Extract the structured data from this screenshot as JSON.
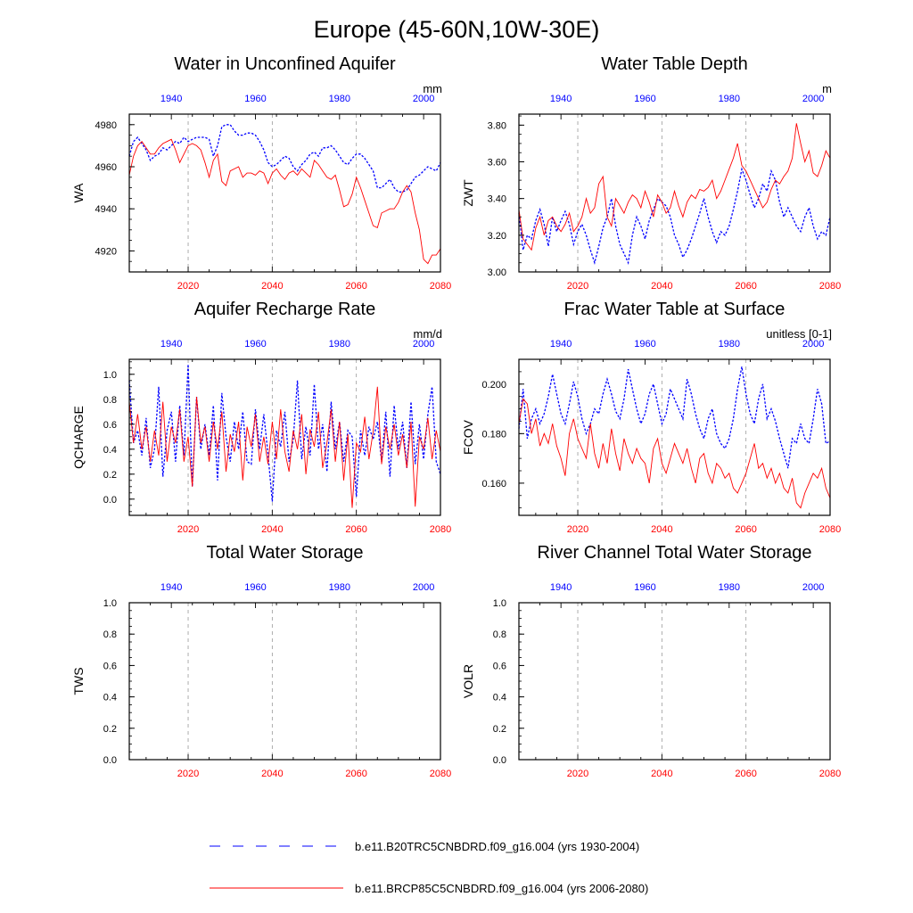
{
  "page_title": "Europe (45-60N,10W-30E)",
  "legend": [
    {
      "label": "b.e11.B20TRC5CNBDRD.f09_g16.004 (yrs 1930-2004)",
      "color": "#0000ff",
      "style": "dashed"
    },
    {
      "label": "b.e11.BRCP85C5CNBDRD.f09_g16.004 (yrs 2006-2080)",
      "color": "#ff0000",
      "style": "solid"
    }
  ],
  "colors": {
    "historical": "#0000ff",
    "future": "#ff0000",
    "grid": "#999999"
  },
  "chart_data": [
    {
      "type": "line",
      "title": "Water in Unconfined Aquifer",
      "ylabel": "WA",
      "units": "mm",
      "ylim": [
        4910,
        4985
      ],
      "yticks": [
        4920,
        4940,
        4960,
        4980
      ],
      "yticklabels": [
        "4920",
        "4940",
        "4960",
        "4980"
      ],
      "bottom_xlim": [
        2006,
        2080
      ],
      "bottom_xticks": [
        "2020",
        "2040",
        "2060",
        "2080"
      ],
      "top_xlim": [
        1930,
        2004
      ],
      "top_xticks": [
        "1940",
        "1960",
        "1980",
        "2000"
      ],
      "series": [
        {
          "name": "b.e11.B20TRC5CNBDRD.f09_g16.004 (yrs 1930-2004)",
          "color": "#0000ff",
          "style": "dashed",
          "x_start": 1930,
          "values": [
            4965,
            4972,
            4974,
            4971,
            4968,
            4963,
            4965,
            4966,
            4969,
            4968,
            4970,
            4972,
            4971,
            4974,
            4972,
            4973,
            4974,
            4974,
            4974,
            4973,
            4965,
            4970,
            4979,
            4980,
            4980,
            4977,
            4975,
            4975,
            4976,
            4976,
            4975,
            4972,
            4968,
            4962,
            4960,
            4961,
            4963,
            4965,
            4964,
            4960,
            4958,
            4961,
            4963,
            4966,
            4967,
            4965,
            4969,
            4969,
            4970,
            4968,
            4965,
            4962,
            4961,
            4964,
            4966,
            4966,
            4964,
            4961,
            4958,
            4950,
            4950,
            4952,
            4954,
            4950,
            4948,
            4948,
            4949,
            4952,
            4955,
            4956,
            4958,
            4960,
            4959,
            4958,
            4962
          ]
        },
        {
          "name": "b.e11.BRCP85C5CNBDRD.f09_g16.004 (yrs 2006-2080)",
          "color": "#ff0000",
          "style": "solid",
          "x_start": 2006,
          "values": [
            4956,
            4965,
            4970,
            4972,
            4969,
            4966,
            4966,
            4969,
            4971,
            4972,
            4973,
            4968,
            4962,
            4966,
            4970,
            4971,
            4970,
            4968,
            4962,
            4955,
            4963,
            4966,
            4953,
            4951,
            4958,
            4959,
            4960,
            4955,
            4957,
            4957,
            4956,
            4958,
            4957,
            4952,
            4957,
            4959,
            4956,
            4954,
            4957,
            4958,
            4956,
            4959,
            4957,
            4955,
            4963,
            4961,
            4958,
            4955,
            4954,
            4956,
            4949,
            4941,
            4942,
            4947,
            4955,
            4950,
            4944,
            4938,
            4932,
            4931,
            4938,
            4939,
            4940,
            4940,
            4943,
            4948,
            4951,
            4948,
            4938,
            4930,
            4916,
            4914,
            4918,
            4918,
            4921
          ]
        }
      ]
    },
    {
      "type": "line",
      "title": "Water Table Depth",
      "ylabel": "ZWT",
      "units": "m",
      "ylim": [
        3.0,
        3.86
      ],
      "yticks": [
        3.0,
        3.2,
        3.4,
        3.6,
        3.8
      ],
      "yticklabels": [
        "3.00",
        "3.20",
        "3.40",
        "3.60",
        "3.80"
      ],
      "bottom_xlim": [
        2006,
        2080
      ],
      "bottom_xticks": [
        "2020",
        "2040",
        "2060",
        "2080"
      ],
      "top_xlim": [
        1930,
        2004
      ],
      "top_xticks": [
        "1940",
        "1960",
        "1980",
        "2000"
      ],
      "series": [
        {
          "name": "b.e11.B20TRC5CNBDRD.f09_g16.004 (yrs 1930-2004)",
          "color": "#0000ff",
          "style": "dashed",
          "x_start": 1930,
          "values": [
            3.32,
            3.12,
            3.2,
            3.18,
            3.28,
            3.34,
            3.26,
            3.14,
            3.3,
            3.22,
            3.28,
            3.33,
            3.26,
            3.15,
            3.22,
            3.26,
            3.2,
            3.12,
            3.05,
            3.14,
            3.24,
            3.3,
            3.4,
            3.25,
            3.15,
            3.1,
            3.05,
            3.2,
            3.3,
            3.25,
            3.18,
            3.28,
            3.34,
            3.4,
            3.38,
            3.36,
            3.3,
            3.2,
            3.15,
            3.08,
            3.12,
            3.18,
            3.25,
            3.32,
            3.4,
            3.3,
            3.22,
            3.16,
            3.22,
            3.2,
            3.25,
            3.34,
            3.44,
            3.56,
            3.5,
            3.42,
            3.35,
            3.4,
            3.48,
            3.44,
            3.55,
            3.5,
            3.38,
            3.3,
            3.35,
            3.3,
            3.25,
            3.22,
            3.3,
            3.35,
            3.25,
            3.18,
            3.22,
            3.2,
            3.3
          ]
        },
        {
          "name": "b.e11.BRCP85C5CNBDRD.f09_g16.004 (yrs 2006-2080)",
          "color": "#ff0000",
          "style": "solid",
          "x_start": 2006,
          "values": [
            3.34,
            3.18,
            3.15,
            3.12,
            3.24,
            3.3,
            3.2,
            3.28,
            3.3,
            3.25,
            3.22,
            3.26,
            3.32,
            3.22,
            3.25,
            3.3,
            3.4,
            3.32,
            3.35,
            3.48,
            3.52,
            3.3,
            3.25,
            3.4,
            3.36,
            3.32,
            3.38,
            3.42,
            3.4,
            3.35,
            3.44,
            3.38,
            3.3,
            3.42,
            3.38,
            3.32,
            3.35,
            3.44,
            3.36,
            3.3,
            3.38,
            3.42,
            3.4,
            3.45,
            3.44,
            3.46,
            3.5,
            3.4,
            3.44,
            3.5,
            3.56,
            3.62,
            3.7,
            3.58,
            3.55,
            3.5,
            3.45,
            3.4,
            3.35,
            3.38,
            3.45,
            3.5,
            3.48,
            3.52,
            3.55,
            3.62,
            3.81,
            3.7,
            3.6,
            3.66,
            3.54,
            3.52,
            3.58,
            3.66,
            3.62
          ]
        }
      ]
    },
    {
      "type": "line",
      "title": "Aquifer Recharge Rate",
      "ylabel": "QCHARGE",
      "units": "mm/d",
      "ylim": [
        -0.13,
        1.12
      ],
      "yticks": [
        0.0,
        0.2,
        0.4,
        0.6,
        0.8,
        1.0
      ],
      "yticklabels": [
        "0.0",
        "0.2",
        "0.4",
        "0.6",
        "0.8",
        "1.0"
      ],
      "bottom_xlim": [
        2006,
        2080
      ],
      "bottom_xticks": [
        "2020",
        "2040",
        "2060",
        "2080"
      ],
      "top_xlim": [
        1930,
        2004
      ],
      "top_xticks": [
        "1940",
        "1960",
        "1980",
        "2000"
      ],
      "series": [
        {
          "name": "b.e11.B20TRC5CNBDRD.f09_g16.004 (yrs 1930-2004)",
          "color": "#0000ff",
          "style": "dashed",
          "x_start": 1930,
          "values": [
            0.95,
            0.45,
            0.55,
            0.35,
            0.65,
            0.25,
            0.4,
            0.9,
            0.18,
            0.55,
            0.7,
            0.3,
            0.75,
            0.35,
            1.08,
            0.1,
            0.82,
            0.4,
            0.6,
            0.35,
            0.75,
            0.15,
            0.85,
            0.5,
            0.3,
            0.62,
            0.4,
            0.7,
            0.3,
            0.28,
            0.72,
            0.4,
            0.68,
            0.36,
            -0.02,
            0.55,
            0.42,
            0.7,
            0.3,
            0.48,
            0.95,
            0.32,
            0.58,
            0.35,
            0.92,
            0.4,
            0.6,
            0.22,
            0.78,
            0.4,
            0.62,
            0.3,
            0.55,
            0.5,
            0.02,
            0.55,
            0.35,
            0.58,
            0.48,
            0.62,
            0.3,
            0.7,
            0.18,
            0.75,
            0.4,
            0.62,
            0.25,
            0.78,
            0.28,
            0.6,
            0.32,
            0.68,
            0.9,
            0.3,
            0.2
          ]
        },
        {
          "name": "b.e11.BRCP85C5CNBDRD.f09_g16.004 (yrs 2006-2080)",
          "color": "#ff0000",
          "style": "solid",
          "x_start": 2006,
          "values": [
            0.78,
            0.45,
            0.68,
            0.4,
            0.58,
            0.3,
            0.55,
            0.35,
            0.78,
            0.3,
            0.58,
            0.45,
            0.72,
            0.3,
            0.5,
            0.1,
            0.82,
            0.45,
            0.58,
            0.3,
            0.62,
            0.4,
            0.7,
            0.22,
            0.52,
            0.38,
            0.62,
            0.15,
            0.58,
            0.42,
            0.68,
            0.3,
            0.5,
            0.28,
            0.62,
            0.32,
            0.72,
            0.38,
            0.22,
            0.55,
            0.4,
            0.68,
            0.2,
            0.56,
            0.42,
            0.7,
            0.25,
            0.45,
            0.72,
            0.3,
            0.62,
            0.15,
            0.52,
            -0.07,
            0.45,
            0.38,
            0.66,
            0.32,
            0.54,
            0.9,
            0.28,
            0.58,
            0.4,
            0.6,
            0.35,
            0.52,
            0.25,
            0.62,
            -0.06,
            0.5,
            0.4,
            0.65,
            0.32,
            0.55,
            0.38
          ]
        }
      ]
    },
    {
      "type": "line",
      "title": "Frac Water Table at Surface",
      "ylabel": "FCOV",
      "units": "unitless [0-1]",
      "ylim": [
        0.147,
        0.21
      ],
      "yticks": [
        0.16,
        0.18,
        0.2
      ],
      "yticklabels": [
        "0.160",
        "0.180",
        "0.200"
      ],
      "bottom_xlim": [
        2006,
        2080
      ],
      "bottom_xticks": [
        "2020",
        "2040",
        "2060",
        "2080"
      ],
      "top_xlim": [
        1930,
        2004
      ],
      "top_xticks": [
        "1940",
        "1960",
        "1980",
        "2000"
      ],
      "series": [
        {
          "name": "b.e11.B20TRC5CNBDRD.f09_g16.004 (yrs 1930-2004)",
          "color": "#0000ff",
          "style": "dashed",
          "x_start": 1930,
          "values": [
            0.182,
            0.198,
            0.178,
            0.186,
            0.19,
            0.184,
            0.188,
            0.195,
            0.204,
            0.196,
            0.188,
            0.184,
            0.192,
            0.201,
            0.195,
            0.186,
            0.18,
            0.184,
            0.19,
            0.188,
            0.196,
            0.202,
            0.196,
            0.189,
            0.186,
            0.194,
            0.206,
            0.198,
            0.19,
            0.184,
            0.188,
            0.196,
            0.2,
            0.192,
            0.184,
            0.188,
            0.198,
            0.194,
            0.19,
            0.186,
            0.202,
            0.196,
            0.188,
            0.182,
            0.178,
            0.186,
            0.19,
            0.18,
            0.176,
            0.174,
            0.178,
            0.186,
            0.198,
            0.207,
            0.196,
            0.188,
            0.184,
            0.194,
            0.2,
            0.186,
            0.19,
            0.185,
            0.178,
            0.172,
            0.166,
            0.178,
            0.176,
            0.184,
            0.178,
            0.176,
            0.186,
            0.198,
            0.192,
            0.176,
            0.177
          ]
        },
        {
          "name": "b.e11.BRCP85C5CNBDRD.f09_g16.004 (yrs 2006-2080)",
          "color": "#ff0000",
          "style": "solid",
          "x_start": 2006,
          "values": [
            0.184,
            0.194,
            0.192,
            0.18,
            0.186,
            0.175,
            0.18,
            0.176,
            0.184,
            0.175,
            0.17,
            0.163,
            0.18,
            0.186,
            0.178,
            0.174,
            0.17,
            0.184,
            0.172,
            0.166,
            0.176,
            0.168,
            0.182,
            0.172,
            0.165,
            0.178,
            0.172,
            0.168,
            0.174,
            0.17,
            0.168,
            0.16,
            0.174,
            0.178,
            0.168,
            0.164,
            0.17,
            0.176,
            0.172,
            0.168,
            0.174,
            0.166,
            0.16,
            0.17,
            0.172,
            0.164,
            0.16,
            0.168,
            0.166,
            0.162,
            0.164,
            0.158,
            0.156,
            0.16,
            0.164,
            0.17,
            0.176,
            0.166,
            0.168,
            0.162,
            0.166,
            0.16,
            0.164,
            0.158,
            0.156,
            0.162,
            0.152,
            0.15,
            0.156,
            0.16,
            0.164,
            0.162,
            0.166,
            0.158,
            0.154
          ]
        }
      ]
    },
    {
      "type": "line",
      "title": "Total Water Storage",
      "ylabel": "TWS",
      "units": "",
      "ylim": [
        0.0,
        1.0
      ],
      "yticks": [
        0.0,
        0.2,
        0.4,
        0.6,
        0.8,
        1.0
      ],
      "yticklabels": [
        "0.0",
        "0.2",
        "0.4",
        "0.6",
        "0.8",
        "1.0"
      ],
      "bottom_xlim": [
        2006,
        2080
      ],
      "bottom_xticks": [
        "2020",
        "2040",
        "2060",
        "2080"
      ],
      "top_xlim": [
        1930,
        2004
      ],
      "top_xticks": [
        "1940",
        "1960",
        "1980",
        "2000"
      ],
      "series": []
    },
    {
      "type": "line",
      "title": "River Channel Total Water Storage",
      "ylabel": "VOLR",
      "units": "",
      "ylim": [
        0.0,
        1.0
      ],
      "yticks": [
        0.0,
        0.2,
        0.4,
        0.6,
        0.8,
        1.0
      ],
      "yticklabels": [
        "0.0",
        "0.2",
        "0.4",
        "0.6",
        "0.8",
        "1.0"
      ],
      "bottom_xlim": [
        2006,
        2080
      ],
      "bottom_xticks": [
        "2020",
        "2040",
        "2060",
        "2080"
      ],
      "top_xlim": [
        1930,
        2004
      ],
      "top_xticks": [
        "1940",
        "1960",
        "1980",
        "2000"
      ],
      "series": []
    }
  ]
}
